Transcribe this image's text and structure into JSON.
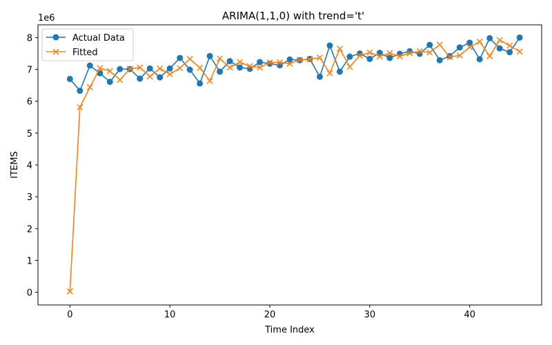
{
  "chart_data": {
    "type": "line",
    "title": "ARIMA(1,1,0) with trend='t'",
    "xlabel": "Time Index",
    "ylabel": "ITEMS",
    "y_scale_label": "1e6",
    "xlim": [
      -3.2,
      47.2
    ],
    "ylim": [
      -0.4,
      8.4
    ],
    "x_ticks": [
      0,
      10,
      20,
      30,
      40
    ],
    "y_ticks": [
      0,
      1,
      2,
      3,
      4,
      5,
      6,
      7,
      8
    ],
    "grid": false,
    "legend_position": "top-left",
    "x": [
      0,
      1,
      2,
      3,
      4,
      5,
      6,
      7,
      8,
      9,
      10,
      11,
      12,
      13,
      14,
      15,
      16,
      17,
      18,
      19,
      20,
      21,
      22,
      23,
      24,
      25,
      26,
      27,
      28,
      29,
      30,
      31,
      32,
      33,
      34,
      35,
      36,
      37,
      38,
      39,
      40,
      41,
      42,
      43,
      44,
      45
    ],
    "series": [
      {
        "name": "Actual Data",
        "color": "#1f77b4",
        "marker": "circle",
        "values": [
          6.7,
          6.33,
          7.12,
          6.88,
          6.61,
          7.01,
          7.01,
          6.71,
          7.03,
          6.75,
          7.03,
          7.36,
          6.99,
          6.56,
          7.42,
          6.93,
          7.26,
          7.06,
          7.02,
          7.23,
          7.18,
          7.13,
          7.31,
          7.29,
          7.33,
          6.77,
          7.75,
          6.93,
          7.4,
          7.5,
          7.33,
          7.52,
          7.36,
          7.49,
          7.57,
          7.49,
          7.77,
          7.29,
          7.42,
          7.69,
          7.84,
          7.32,
          7.98,
          7.66,
          7.54,
          8.0
        ]
      },
      {
        "name": "Fitted",
        "color": "#ff7f0e",
        "marker": "x",
        "values": [
          0.03,
          5.81,
          6.44,
          7.04,
          6.95,
          6.67,
          7.02,
          7.06,
          6.78,
          7.03,
          6.85,
          7.04,
          7.33,
          7.05,
          6.64,
          7.34,
          7.06,
          7.23,
          7.1,
          7.06,
          7.22,
          7.22,
          7.18,
          7.3,
          7.32,
          7.37,
          6.88,
          7.65,
          7.08,
          7.44,
          7.53,
          7.41,
          7.51,
          7.41,
          7.51,
          7.57,
          7.53,
          7.78,
          7.39,
          7.44,
          7.7,
          7.87,
          7.42,
          7.92,
          7.75,
          7.56
        ]
      }
    ]
  }
}
